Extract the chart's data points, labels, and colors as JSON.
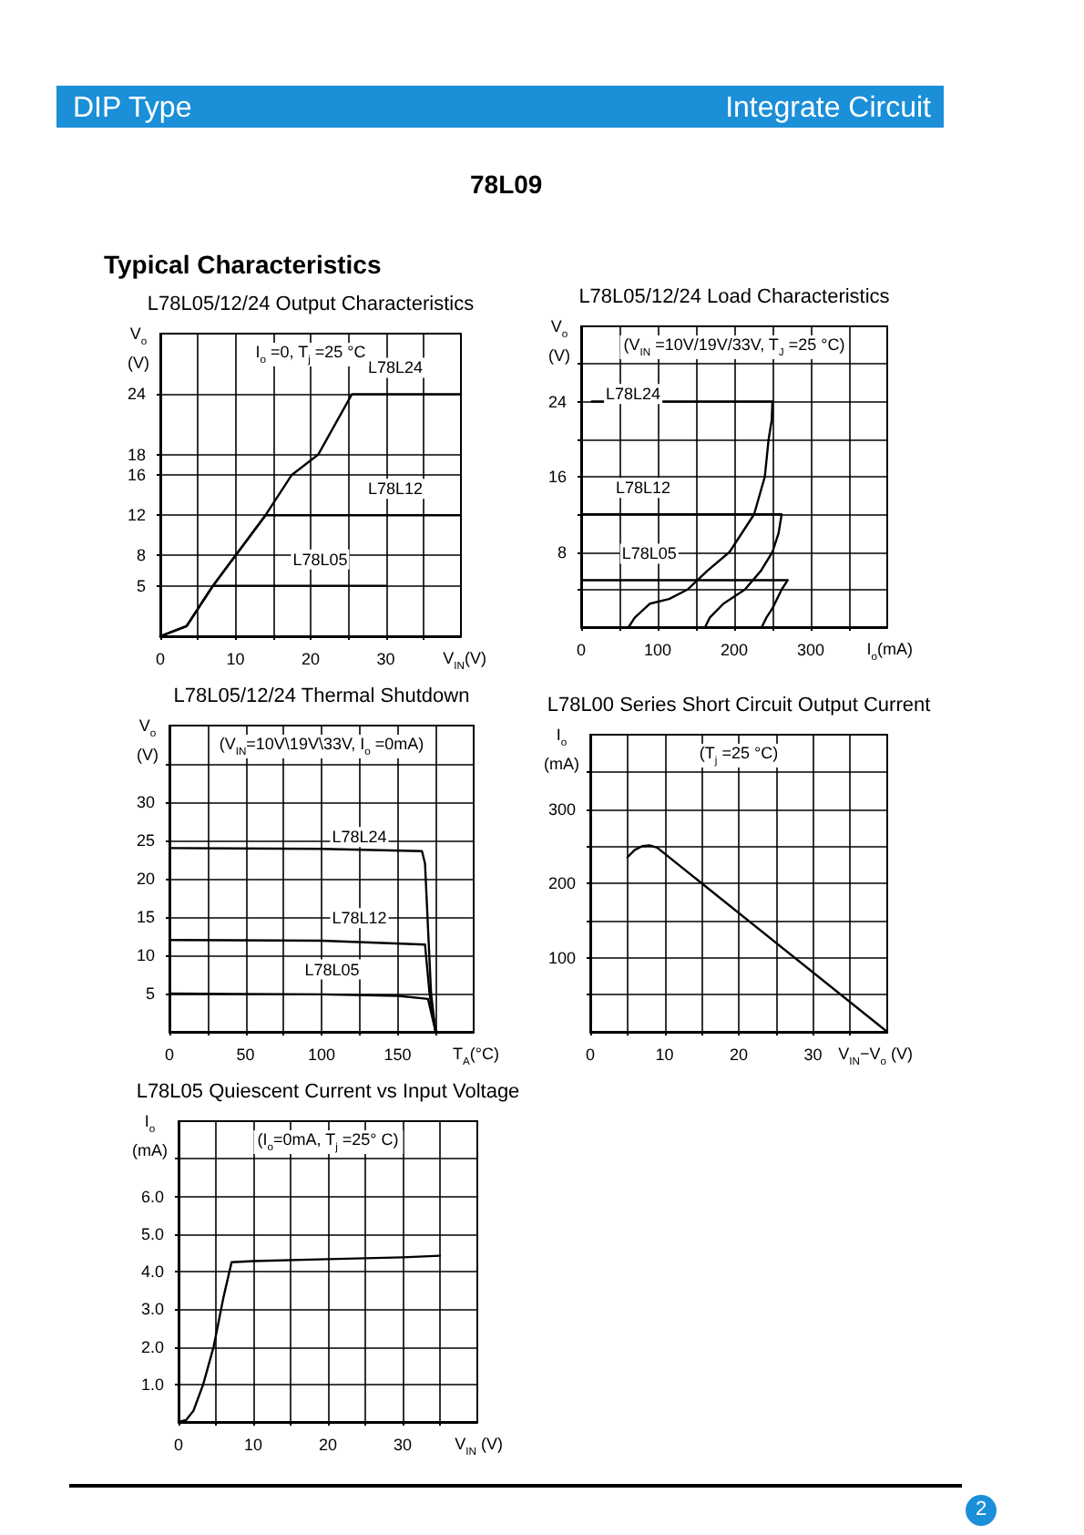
{
  "chart_data": [
    {
      "type": "line",
      "title": "L78L05/12/24 Output Characteristics",
      "xlabel": "V$_{IN}$(V)",
      "ylabel": "V$_{o}$\n(V)",
      "annotations": [
        "I$_{o}$ =0,  T$_{j}$ =25 °C"
      ],
      "xlim": [
        0,
        40
      ],
      "ylim": [
        0,
        30
      ],
      "xticks": [
        0,
        {
          "value": 5,
          "label": null
        },
        10,
        {
          "value": 15,
          "label": null
        },
        20,
        {
          "value": 25,
          "label": null
        },
        30,
        {
          "value": 35,
          "label": null
        }
      ],
      "yticks": [
        5,
        8,
        12,
        16,
        18,
        24
      ],
      "grid": true,
      "marker": "none",
      "line_style": "solid",
      "series": [
        {
          "name": "L78L24",
          "color": "#000000",
          "x": [
            0,
            3.5,
            7,
            10,
            14,
            17.5,
            21,
            25.5,
            40
          ],
          "values": [
            0,
            1,
            5,
            8,
            12,
            16,
            18,
            24,
            24
          ]
        },
        {
          "name": "L78L12",
          "color": "#000000",
          "x": [
            0,
            3.5,
            7,
            10,
            14,
            40
          ],
          "values": [
            0,
            1,
            5,
            8,
            12,
            12
          ]
        },
        {
          "name": "L78L05",
          "color": "#000000",
          "x": [
            0,
            3.5,
            7,
            30
          ],
          "values": [
            0,
            1,
            5,
            5
          ]
        }
      ]
    },
    {
      "type": "line",
      "title": "L78L05/12/24 Load Characteristics",
      "xlabel": "I$_{o}$(mA)",
      "ylabel": "V$_{o}$\n(V)",
      "annotations": [
        "(V$_{IN}$ =10V/19V/33V,   T$_{J}$ =25 °C)"
      ],
      "xlim": [
        0,
        400
      ],
      "ylim": [
        0,
        32
      ],
      "xticks": [
        0,
        {
          "value": 50,
          "label": null
        },
        100,
        {
          "value": 150,
          "label": null
        },
        200,
        {
          "value": 250,
          "label": null
        },
        300,
        {
          "value": 350,
          "label": null
        }
      ],
      "yticks": [
        {
          "value": 4,
          "label": null
        },
        8,
        {
          "value": 12,
          "label": null
        },
        16,
        {
          "value": 20,
          "label": null
        },
        24,
        {
          "value": 28,
          "label": null
        }
      ],
      "grid": true,
      "marker": "none",
      "line_style": "solid",
      "series": [
        {
          "name": "L78L24",
          "color": "#000000",
          "x": [
            14,
            250,
            249,
            245,
            240,
            226,
            194,
            165,
            139,
            115,
            90,
            70,
            62
          ],
          "values": [
            24,
            24,
            22,
            20,
            16,
            12,
            8,
            6,
            4,
            3,
            2.5,
            1,
            0
          ]
        },
        {
          "name": "L78L12",
          "color": "#000000",
          "x": [
            0,
            262,
            258,
            250,
            235,
            214,
            186,
            168,
            162
          ],
          "values": [
            12,
            12,
            10,
            8,
            6,
            4,
            2.5,
            1,
            0
          ]
        },
        {
          "name": "L78L05",
          "color": "#000000",
          "x": [
            0,
            270,
            262,
            250,
            242,
            236
          ],
          "values": [
            5,
            5,
            4,
            2,
            1,
            0
          ]
        }
      ]
    },
    {
      "type": "line",
      "title": "L78L05/12/24 Thermal Shutdown",
      "xlabel": "T$_{A}$(°C)",
      "ylabel": "V$_{o}$\n(V)",
      "annotations": [
        "(V$_{IN}$=10V\\19V\\33V,  I$_{o}$ =0mA)"
      ],
      "xlim": [
        0,
        200
      ],
      "ylim": [
        0,
        40
      ],
      "xticks": [
        0,
        {
          "value": 25,
          "label": null
        },
        50,
        {
          "value": 75,
          "label": null
        },
        100,
        {
          "value": 125,
          "label": null
        },
        150,
        {
          "value": 175,
          "label": null
        }
      ],
      "yticks": [
        5,
        10,
        15,
        20,
        25,
        30,
        {
          "value": 35,
          "label": null
        }
      ],
      "grid": true,
      "marker": "none",
      "line_style": "solid",
      "series": [
        {
          "name": "L78L24",
          "color": "#000000",
          "x": [
            0,
            100,
            166,
            168,
            172,
            175
          ],
          "values": [
            24,
            23.9,
            23.6,
            22,
            5,
            0
          ]
        },
        {
          "name": "L78L12",
          "color": "#000000",
          "x": [
            0,
            100,
            168,
            171,
            175
          ],
          "values": [
            12,
            11.9,
            11.4,
            5,
            0
          ]
        },
        {
          "name": "L78L05",
          "color": "#000000",
          "x": [
            0,
            100,
            150,
            170,
            175
          ],
          "values": [
            5,
            4.9,
            4.7,
            4.3,
            0
          ]
        }
      ]
    },
    {
      "type": "line",
      "title": "L78L00 Series Short Circuit Output Current",
      "xlabel": "V$_{IN}$−V$_{o}$ (V)",
      "ylabel": "I$_{o}$\n(mA)",
      "annotations": [
        "(T$_{j}$ =25 °C)"
      ],
      "xlim": [
        0,
        40
      ],
      "ylim": [
        0,
        400
      ],
      "xticks": [
        0,
        {
          "value": 5,
          "label": null
        },
        10,
        {
          "value": 15,
          "label": null
        },
        20,
        {
          "value": 25,
          "label": null
        },
        30,
        {
          "value": 35,
          "label": null
        }
      ],
      "yticks": [
        {
          "value": 50,
          "label": null
        },
        100,
        {
          "value": 150,
          "label": null
        },
        200,
        {
          "value": 250,
          "label": null
        },
        300,
        {
          "value": 350,
          "label": null
        }
      ],
      "grid": true,
      "marker": "none",
      "line_style": "solid",
      "series": [
        {
          "color": "#000000",
          "x": [
            5,
            6,
            7,
            8,
            9,
            40
          ],
          "values": [
            235,
            245,
            250,
            251,
            248,
            0
          ]
        }
      ]
    },
    {
      "type": "line",
      "title": "L78L05 Quiescent Current vs Input Voltage",
      "xlabel": "V$_{IN}$ (V)",
      "ylabel": "I$_{o}$\n(mA)",
      "annotations": [
        "(I$_{o}$=0mA,  T$_{j}$ =25° C)"
      ],
      "xlim": [
        0,
        40
      ],
      "ylim": [
        0,
        8
      ],
      "xticks": [
        0,
        {
          "value": 5,
          "label": null
        },
        10,
        {
          "value": 15,
          "label": null
        },
        20,
        {
          "value": 25,
          "label": null
        },
        30,
        {
          "value": 35,
          "label": null
        }
      ],
      "yticks": [
        {
          "value": 1,
          "label": "1.0"
        },
        {
          "value": 2,
          "label": "2.0"
        },
        {
          "value": 3,
          "label": "3.0"
        },
        {
          "value": 4,
          "label": "4.0"
        },
        {
          "value": 5,
          "label": "5.0"
        },
        {
          "value": 6,
          "label": "6.0"
        },
        {
          "value": 7,
          "label": null
        }
      ],
      "grid": true,
      "marker": "none",
      "line_style": "solid",
      "series": [
        {
          "color": "#000000",
          "x": [
            0,
            1,
            2,
            3.3,
            4,
            4.7,
            6,
            7.1,
            10,
            20,
            30,
            35
          ],
          "values": [
            0,
            0.05,
            0.3,
            1,
            1.5,
            2,
            3.3,
            4.25,
            4.28,
            4.33,
            4.38,
            4.42
          ]
        }
      ]
    },
    {
      "type": "other",
      "annotations": [
        "DIP Type",
        "Integrate Circuit",
        "78L09",
        "Typical Characteristics",
        "2"
      ]
    }
  ]
}
